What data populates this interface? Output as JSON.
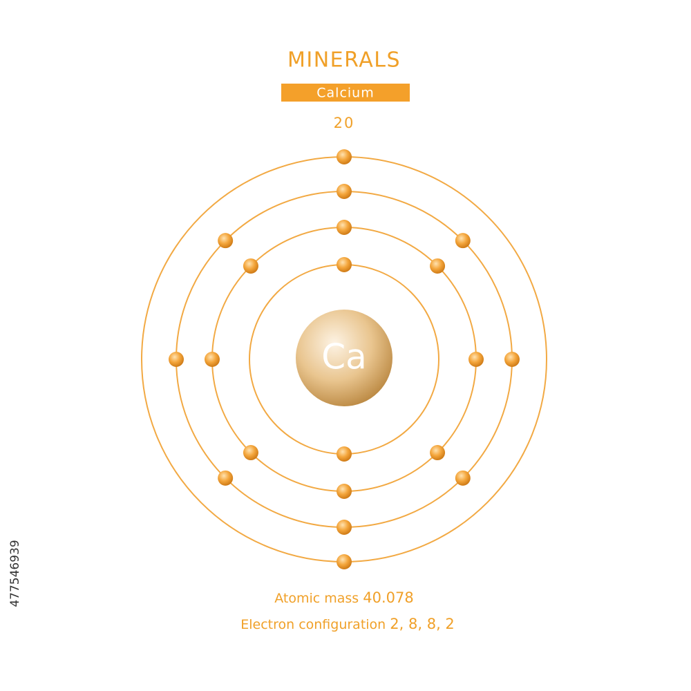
{
  "header": {
    "title": "MINERALS",
    "element": "Calcium",
    "atomic_number": "20"
  },
  "atom": {
    "symbol": "Ca"
  },
  "footer": {
    "mass_label": "Atomic mass",
    "mass_value": "40.078",
    "config_label": "Electron configuration",
    "config_value": "2, 8, 8, 2"
  },
  "stock_id": "477546939"
}
